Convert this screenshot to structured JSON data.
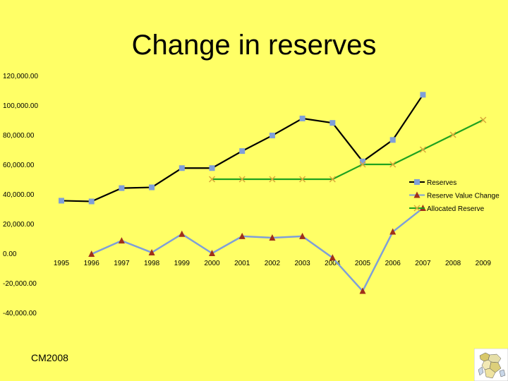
{
  "slide": {
    "title": "Change in reserves",
    "footer": "CM2008"
  },
  "colors": {
    "background": "#FFFF66",
    "reserves_line": "#000000",
    "reserves_marker": "#7F9FD8",
    "reserve_value_change_line": "#7F9FD8",
    "reserve_value_change_marker": "#A0301A",
    "allocated_reserve_line": "#1FA21F",
    "allocated_reserve_marker": "#D9A83A"
  },
  "chart_data": {
    "type": "line",
    "title": "Change in reserves",
    "xlabel": "",
    "ylabel": "",
    "categories": [
      "1995",
      "1996",
      "1997",
      "1998",
      "1999",
      "2000",
      "2001",
      "2002",
      "2003",
      "2004",
      "2005",
      "2006",
      "2007",
      "2008",
      "2009"
    ],
    "ylim": [
      -40000,
      120000
    ],
    "yticks": [
      "-40,000.00",
      "-20,000.00",
      "0.00",
      "20,000.00",
      "40,000.00",
      "60,000.00",
      "80,000.00",
      "100,000.00",
      "120,000.00"
    ],
    "grid": false,
    "legend_position": "right",
    "series": [
      {
        "name": "Reserves",
        "marker": "square",
        "values": [
          35500,
          35000,
          44000,
          44500,
          57500,
          57500,
          69000,
          79500,
          91000,
          88000,
          62000,
          76500,
          107000,
          null,
          null
        ]
      },
      {
        "name": "Reserve Value Change",
        "marker": "triangle",
        "values": [
          null,
          -500,
          8500,
          500,
          13000,
          0,
          11500,
          10500,
          11500,
          -3000,
          -25500,
          14500,
          30500,
          null,
          null
        ]
      },
      {
        "name": "Allocated Reserve",
        "marker": "x",
        "values": [
          null,
          null,
          null,
          null,
          null,
          50000,
          50000,
          50000,
          50000,
          50000,
          60000,
          60000,
          70000,
          80000,
          90000
        ]
      }
    ]
  }
}
